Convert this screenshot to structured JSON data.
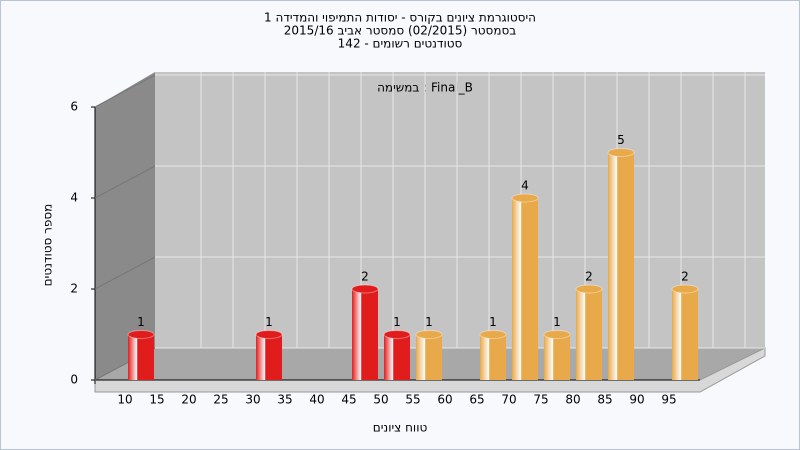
{
  "chart_data": {
    "type": "bar",
    "title": [
      "היסטוגרמת ציונים בקורס - יסודות התמיפוי והמדידה 1",
      "בסמסטר  (02/2015)  סמסטר אביב 2015/16",
      "סטודנטים רשומים - 142"
    ],
    "subtitle": "במשימה : Final_B",
    "x_label": "טווח ציונים",
    "y_label": "מספר סטודנטים",
    "categories": [
      "10",
      "15",
      "20",
      "25",
      "30",
      "35",
      "40",
      "45",
      "50",
      "55",
      "60",
      "65",
      "70",
      "75",
      "80",
      "85",
      "90",
      "95"
    ],
    "values": [
      1,
      0,
      0,
      0,
      1,
      0,
      0,
      2,
      1,
      1,
      0,
      1,
      4,
      1,
      2,
      5,
      0,
      2
    ],
    "colors": [
      "#e01c1c",
      "#e01c1c",
      "#e01c1c",
      "#e01c1c",
      "#e01c1c",
      "#e01c1c",
      "#e01c1c",
      "#e01c1c",
      "#e01c1c",
      "#e8a94a",
      "#e8a94a",
      "#e8a94a",
      "#e8a94a",
      "#e8a94a",
      "#e8a94a",
      "#e8a94a",
      "#e8a94a",
      "#e8a94a"
    ],
    "ylim": [
      0,
      6
    ],
    "yticks": [
      0,
      2,
      4,
      6
    ],
    "grid": true
  }
}
